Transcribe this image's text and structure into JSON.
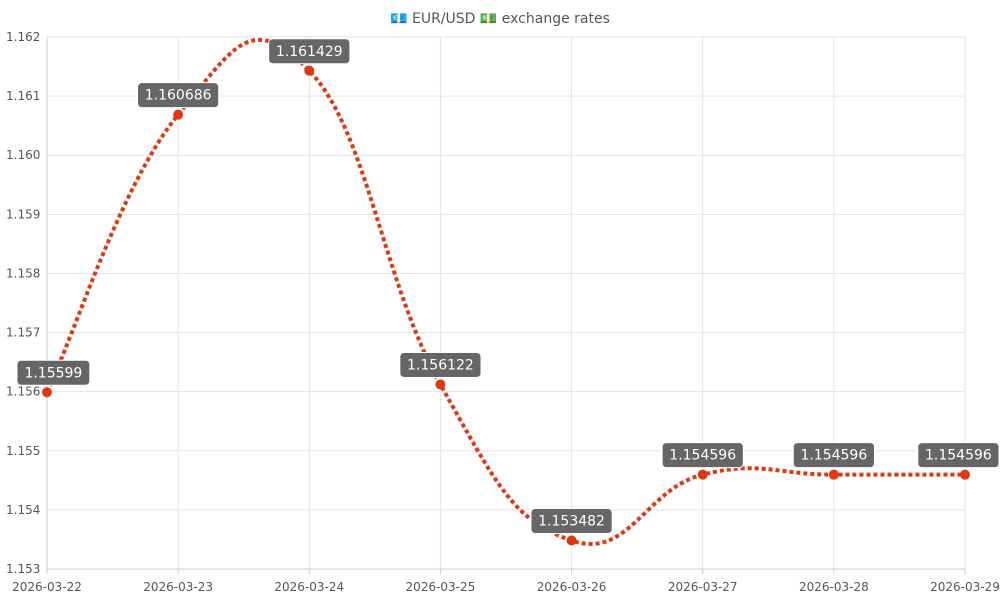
{
  "chart_data": {
    "type": "line",
    "title": "💶 EUR/USD 💵 exchange rates",
    "categories": [
      "2026-03-22",
      "2026-03-23",
      "2026-03-24",
      "2026-03-25",
      "2026-03-26",
      "2026-03-27",
      "2026-03-28",
      "2026-03-29"
    ],
    "series": [
      {
        "values": [
          1.15599,
          1.160686,
          1.161429,
          1.156122,
          1.153482,
          1.154596,
          1.154596,
          1.154596
        ],
        "labels": [
          "1.15599",
          "1.160686",
          "1.161429",
          "1.156122",
          "1.153482",
          "1.154596",
          "1.154596",
          "1.154596"
        ],
        "color": "#dc3912",
        "line_style": "dotted",
        "smooth": true
      }
    ],
    "xlabel": "",
    "ylabel": "",
    "ylim": [
      1.153,
      1.162
    ],
    "yticks": [
      "1.153",
      "1.154",
      "1.155",
      "1.156",
      "1.157",
      "1.158",
      "1.159",
      "1.160",
      "1.161",
      "1.162"
    ],
    "grid": true,
    "legend": "none",
    "label_background": "#666666"
  }
}
